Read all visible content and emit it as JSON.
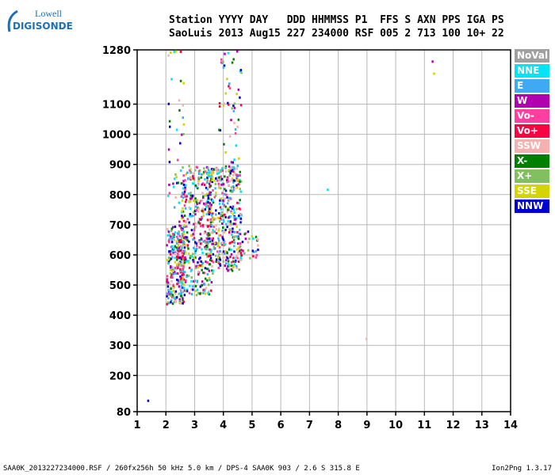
{
  "logo": {
    "line1": "Lowell",
    "line2": "DIGISONDE"
  },
  "header": {
    "line1": "Station YYYY DAY   DDD HHMMSS P1  FFS S AXN PPS IGA PS",
    "line2": "SaoLuis 2013 Aug15 227 234000 RSF 005 2 713 100 10+ 22"
  },
  "legend": [
    {
      "label": "NoVal",
      "color": "#a0a0a0"
    },
    {
      "label": "NNE",
      "color": "#00e5f5"
    },
    {
      "label": "E",
      "color": "#3fa9f5"
    },
    {
      "label": "W",
      "color": "#b000b0"
    },
    {
      "label": "Vo-",
      "color": "#ff3fa0"
    },
    {
      "label": "Vo+",
      "color": "#ff0040"
    },
    {
      "label": "SSW",
      "color": "#f5b0b0"
    },
    {
      "label": "X-",
      "color": "#008000"
    },
    {
      "label": "X+",
      "color": "#80c060"
    },
    {
      "label": "SSE",
      "color": "#d4d400"
    },
    {
      "label": "NNW",
      "color": "#0000d0"
    }
  ],
  "footer": {
    "left": "SAA0K_2013227234000.RSF / 260fx256h 50 kHz 5.0 km / DPS-4 SAA0K 903 / 2.6 S 315.8 E",
    "right": "Ion2Png 1.3.17"
  },
  "chart_data": {
    "type": "scatter",
    "xlim": [
      1,
      14
    ],
    "ylim": [
      80,
      1280
    ],
    "xticks": [
      1,
      2,
      3,
      4,
      5,
      6,
      7,
      8,
      9,
      10,
      11,
      12,
      13,
      14
    ],
    "yticks": [
      80,
      200,
      300,
      400,
      500,
      600,
      700,
      800,
      900,
      1000,
      1100,
      1280
    ],
    "grid": true,
    "clusters": [
      {
        "x": [
          2.0,
          2.6
        ],
        "y": [
          440,
          700
        ],
        "count": 260
      },
      {
        "x": [
          2.5,
          3.6
        ],
        "y": [
          470,
          900
        ],
        "count": 420
      },
      {
        "x": [
          3.4,
          4.6
        ],
        "y": [
          550,
          900
        ],
        "count": 420
      },
      {
        "x": [
          4.5,
          5.2
        ],
        "y": [
          590,
          690
        ],
        "count": 30
      },
      {
        "x": [
          2.0,
          2.6
        ],
        "y": [
          700,
          1280
        ],
        "count": 40
      },
      {
        "x": [
          3.8,
          4.6
        ],
        "y": [
          900,
          1280
        ],
        "count": 50
      }
    ],
    "isolated_points": [
      {
        "x": 1.35,
        "y": 120,
        "color": "#0000d0"
      },
      {
        "x": 7.6,
        "y": 820,
        "color": "#00e5f5"
      },
      {
        "x": 8.95,
        "y": 325,
        "color": "#f5b0b0"
      },
      {
        "x": 11.25,
        "y": 1245,
        "color": "#b000b0"
      },
      {
        "x": 11.3,
        "y": 1205,
        "color": "#d4d400"
      }
    ]
  }
}
